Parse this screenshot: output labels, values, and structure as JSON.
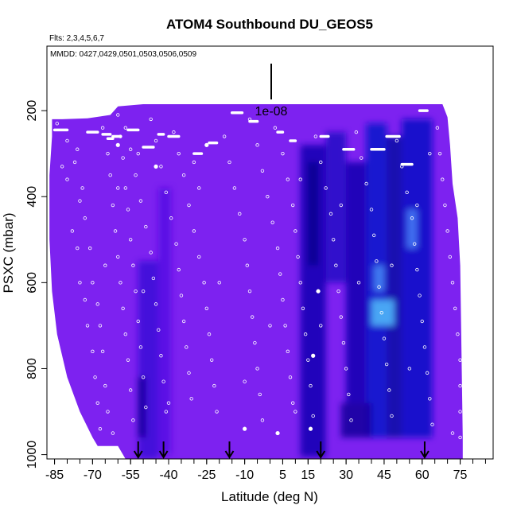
{
  "chart_data": {
    "type": "heatmap",
    "title": "ATOM4 Southbound DU_GEOS5",
    "flights_note": "Flts: 2,3,4,5,6,7",
    "dates_note": "MMDD: 0427,0429,0501,0503,0506,0509",
    "scale_label": "1e-08",
    "xlabel": "Latitude (deg N)",
    "ylabel": "PSXC (mbar)",
    "xlim": [
      -88,
      88
    ],
    "ylim": [
      1010,
      50
    ],
    "y_reversed": true,
    "xticks": [
      -85,
      -70,
      -55,
      -40,
      -25,
      -10,
      5,
      15,
      30,
      45,
      60,
      75
    ],
    "xtick_labels": [
      "-85",
      "-70",
      "-55",
      "-40",
      "-25",
      "-10",
      "5",
      "15",
      "30",
      "45",
      "60",
      "75"
    ],
    "yticks": [
      200,
      400,
      600,
      800,
      1000
    ],
    "ytick_labels": [
      "200",
      "400",
      "600",
      "800",
      "1000"
    ],
    "field_boundary": [
      [
        -86,
        220
      ],
      [
        -82,
        220
      ],
      [
        -72,
        218
      ],
      [
        -63,
        210
      ],
      [
        -60,
        190
      ],
      [
        -50,
        185
      ],
      [
        -40,
        185
      ],
      [
        -20,
        185
      ],
      [
        0,
        185
      ],
      [
        20,
        185
      ],
      [
        40,
        185
      ],
      [
        55,
        185
      ],
      [
        68,
        185
      ],
      [
        70,
        215
      ],
      [
        71,
        280
      ],
      [
        72,
        370
      ],
      [
        74,
        450
      ],
      [
        75,
        560
      ],
      [
        76,
        960
      ],
      [
        76,
        1010
      ],
      [
        -57,
        1010
      ],
      [
        -60,
        980
      ],
      [
        -68,
        980
      ],
      [
        -70,
        960
      ],
      [
        -75,
        900
      ],
      [
        -80,
        820
      ],
      [
        -84,
        720
      ],
      [
        -86,
        620
      ],
      [
        -87,
        500
      ],
      [
        -87,
        350
      ],
      [
        -86,
        260
      ]
    ],
    "base_color": "#7d22f0",
    "concentration_regions": [
      {
        "lat": [
          -52,
          -44
        ],
        "p": [
          550,
          1010
        ],
        "color": "#3f0fd8"
      },
      {
        "lat": [
          -52,
          -49
        ],
        "p": [
          820,
          960
        ],
        "color": "#10009a"
      },
      {
        "lat": [
          -44,
          -39
        ],
        "p": [
          380,
          1000
        ],
        "color": "#5812e4"
      },
      {
        "lat": [
          12,
          22
        ],
        "p": [
          280,
          1005
        ],
        "color": "#1a04b5"
      },
      {
        "lat": [
          15,
          19
        ],
        "p": [
          320,
          560
        ],
        "color": "#0e0090"
      },
      {
        "lat": [
          22,
          30
        ],
        "p": [
          250,
          600
        ],
        "color": "#2a08c8"
      },
      {
        "lat": [
          30,
          38
        ],
        "p": [
          320,
          880
        ],
        "color": "#1605b2"
      },
      {
        "lat": [
          38,
          46
        ],
        "p": [
          230,
          960
        ],
        "color": "#0a14cc"
      },
      {
        "lat": [
          46,
          52
        ],
        "p": [
          260,
          960
        ],
        "color": "#0d0aa8"
      },
      {
        "lat": [
          52,
          64
        ],
        "p": [
          220,
          960
        ],
        "color": "#1010c8"
      },
      {
        "lat": [
          28,
          40
        ],
        "p": [
          880,
          960
        ],
        "color": "#1a00a0"
      }
    ],
    "highlight_patches": [
      {
        "lat": [
          54,
          58
        ],
        "p": [
          430,
          520
        ],
        "color": "#3f6ef0"
      },
      {
        "lat": [
          41,
          45
        ],
        "p": [
          560,
          620
        ],
        "color": "#3f7af0"
      },
      {
        "lat": [
          40,
          49
        ],
        "p": [
          640,
          700
        ],
        "color": "#4aa6f4"
      }
    ],
    "flight_track_points": [
      [
        -84,
        230
      ],
      [
        -82,
        330
      ],
      [
        -80,
        360
      ],
      [
        -78,
        480
      ],
      [
        -76,
        520
      ],
      [
        -75,
        600
      ],
      [
        -73,
        640
      ],
      [
        -72,
        700
      ],
      [
        -70,
        760
      ],
      [
        -69,
        820
      ],
      [
        -68,
        880
      ],
      [
        -67,
        940
      ],
      [
        -80,
        270
      ],
      [
        -77,
        320
      ],
      [
        -75,
        410
      ],
      [
        -73,
        450
      ],
      [
        -71,
        520
      ],
      [
        -70,
        600
      ],
      [
        -68,
        650
      ],
      [
        -67,
        700
      ],
      [
        -66,
        760
      ],
      [
        -65,
        840
      ],
      [
        -64,
        900
      ],
      [
        -62,
        950
      ],
      [
        -66,
        240
      ],
      [
        -64,
        300
      ],
      [
        -63,
        350
      ],
      [
        -62,
        420
      ],
      [
        -61,
        480
      ],
      [
        -60,
        540
      ],
      [
        -59,
        600
      ],
      [
        -58,
        660
      ],
      [
        -57,
        720
      ],
      [
        -56,
        780
      ],
      [
        -55,
        850
      ],
      [
        -54,
        920
      ],
      [
        -60,
        210
      ],
      [
        -59,
        260
      ],
      [
        -58,
        310
      ],
      [
        -57,
        380
      ],
      [
        -56,
        430
      ],
      [
        -55,
        500
      ],
      [
        -54,
        560
      ],
      [
        -53,
        620
      ],
      [
        -52,
        690
      ],
      [
        -51,
        750
      ],
      [
        -50,
        820
      ],
      [
        -49,
        890
      ],
      [
        -57,
        240
      ],
      [
        -55,
        290
      ],
      [
        -53,
        350
      ],
      [
        -51,
        410
      ],
      [
        -49,
        470
      ],
      [
        -47,
        530
      ],
      [
        -46,
        590
      ],
      [
        -45,
        650
      ],
      [
        -44,
        710
      ],
      [
        -43,
        770
      ],
      [
        -42,
        830
      ],
      [
        -41,
        900
      ],
      [
        -47,
        220
      ],
      [
        -45,
        270
      ],
      [
        -43,
        330
      ],
      [
        -41,
        390
      ],
      [
        -39,
        450
      ],
      [
        -37,
        510
      ],
      [
        -36,
        570
      ],
      [
        -35,
        630
      ],
      [
        -34,
        690
      ],
      [
        -33,
        750
      ],
      [
        -32,
        810
      ],
      [
        -31,
        870
      ],
      [
        -38,
        250
      ],
      [
        -36,
        300
      ],
      [
        -34,
        350
      ],
      [
        -32,
        420
      ],
      [
        -30,
        480
      ],
      [
        -28,
        540
      ],
      [
        -26,
        600
      ],
      [
        -25,
        660
      ],
      [
        -24,
        720
      ],
      [
        -23,
        780
      ],
      [
        -22,
        840
      ],
      [
        -21,
        900
      ],
      [
        -18,
        260
      ],
      [
        -16,
        320
      ],
      [
        -14,
        380
      ],
      [
        -12,
        440
      ],
      [
        -10,
        500
      ],
      [
        -9,
        560
      ],
      [
        -8,
        620
      ],
      [
        -7,
        680
      ],
      [
        -6,
        740
      ],
      [
        -5,
        800
      ],
      [
        -4,
        860
      ],
      [
        -3,
        920
      ],
      [
        -8,
        220
      ],
      [
        -5,
        280
      ],
      [
        -3,
        340
      ],
      [
        -1,
        400
      ],
      [
        1,
        460
      ],
      [
        3,
        520
      ],
      [
        4,
        580
      ],
      [
        5,
        640
      ],
      [
        6,
        700
      ],
      [
        7,
        760
      ],
      [
        8,
        820
      ],
      [
        9,
        880
      ],
      [
        2,
        240
      ],
      [
        5,
        300
      ],
      [
        7,
        360
      ],
      [
        9,
        420
      ],
      [
        10,
        480
      ],
      [
        11,
        540
      ],
      [
        12,
        600
      ],
      [
        13,
        660
      ],
      [
        14,
        720
      ],
      [
        15,
        780
      ],
      [
        16,
        840
      ],
      [
        17,
        910
      ],
      [
        18,
        260
      ],
      [
        20,
        320
      ],
      [
        22,
        380
      ],
      [
        24,
        440
      ],
      [
        25,
        500
      ],
      [
        26,
        560
      ],
      [
        27,
        620
      ],
      [
        28,
        680
      ],
      [
        29,
        740
      ],
      [
        30,
        800
      ],
      [
        31,
        860
      ],
      [
        32,
        920
      ],
      [
        34,
        250
      ],
      [
        36,
        310
      ],
      [
        38,
        370
      ],
      [
        40,
        430
      ],
      [
        41,
        490
      ],
      [
        42,
        550
      ],
      [
        43,
        610
      ],
      [
        44,
        670
      ],
      [
        45,
        730
      ],
      [
        46,
        790
      ],
      [
        47,
        850
      ],
      [
        48,
        910
      ],
      [
        50,
        270
      ],
      [
        52,
        330
      ],
      [
        54,
        390
      ],
      [
        56,
        450
      ],
      [
        57,
        510
      ],
      [
        58,
        570
      ],
      [
        59,
        630
      ],
      [
        60,
        690
      ],
      [
        61,
        750
      ],
      [
        62,
        810
      ],
      [
        63,
        870
      ],
      [
        64,
        930
      ],
      [
        66,
        240
      ],
      [
        67,
        300
      ],
      [
        68,
        360
      ],
      [
        69,
        420
      ],
      [
        70,
        480
      ],
      [
        71,
        540
      ],
      [
        72,
        600
      ],
      [
        73,
        660
      ],
      [
        74,
        720
      ],
      [
        75,
        780
      ],
      [
        75,
        840
      ],
      [
        75,
        900
      ],
      [
        75,
        960
      ],
      [
        -76,
        290
      ],
      [
        -74,
        380
      ],
      [
        -65,
        560
      ],
      [
        -52,
        300
      ],
      [
        -30,
        320
      ],
      [
        -20,
        600
      ],
      [
        0,
        700
      ],
      [
        10,
        900
      ],
      [
        20,
        700
      ],
      [
        35,
        600
      ],
      [
        55,
        800
      ],
      [
        63,
        300
      ],
      [
        72,
        950
      ],
      [
        -60,
        380
      ],
      [
        -50,
        620
      ],
      [
        -40,
        880
      ],
      [
        -28,
        380
      ],
      [
        -10,
        830
      ],
      [
        12,
        360
      ],
      [
        28,
        420
      ],
      [
        48,
        560
      ],
      [
        58,
        420
      ]
    ],
    "level_segments": [
      [
        -85,
        -80,
        245
      ],
      [
        -72,
        -68,
        250
      ],
      [
        -66,
        -63,
        255
      ],
      [
        -64,
        -62,
        265
      ],
      [
        -62,
        -59,
        260
      ],
      [
        -56,
        -52,
        245
      ],
      [
        -50,
        -46,
        285
      ],
      [
        -44,
        -42,
        255
      ],
      [
        -40,
        -36,
        260
      ],
      [
        -30,
        -27,
        300
      ],
      [
        -24,
        -21,
        275
      ],
      [
        -15,
        -11,
        205
      ],
      [
        -8,
        -5,
        225
      ],
      [
        3,
        5,
        250
      ],
      [
        8,
        10,
        270
      ],
      [
        20,
        23,
        260
      ],
      [
        29,
        33,
        290
      ],
      [
        40,
        45,
        290
      ],
      [
        46,
        51,
        260
      ],
      [
        52,
        56,
        325
      ],
      [
        59,
        62,
        200
      ]
    ],
    "highlight_dots": [
      [
        -60,
        280
      ],
      [
        -45,
        330
      ],
      [
        -25,
        280
      ],
      [
        -10,
        940
      ],
      [
        3,
        950
      ],
      [
        16,
        940
      ],
      [
        17,
        770
      ],
      [
        19,
        620
      ]
    ],
    "flight_arrows_lat": [
      -52,
      -42,
      -16,
      20,
      61
    ]
  }
}
